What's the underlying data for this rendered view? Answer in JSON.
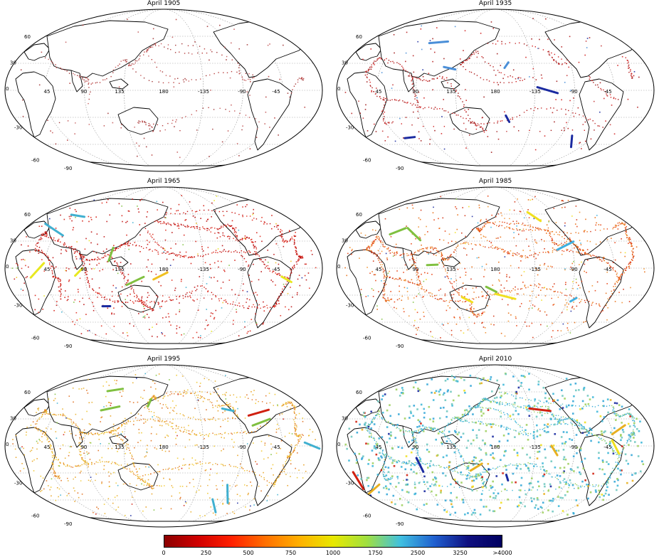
{
  "panels": [
    {
      "id": "p1905",
      "title": "April 1905",
      "density": 0.25,
      "palette": [
        "#b8403e",
        "#c76060",
        "#a33a3a"
      ],
      "extra": []
    },
    {
      "id": "p1935",
      "title": "April 1935",
      "density": 0.45,
      "palette": [
        "#b51d1d",
        "#c43a3a",
        "#d02020",
        "#a01818"
      ],
      "extra": [
        "#4a8fd8",
        "#1a2aa0"
      ]
    },
    {
      "id": "p1965",
      "title": "April 1965",
      "density": 0.8,
      "palette": [
        "#d41a10",
        "#c01010",
        "#e03020",
        "#b80c0c"
      ],
      "extra": [
        "#f0c020",
        "#e8e820",
        "#40b0d0",
        "#1a2aa0",
        "#80c040"
      ]
    },
    {
      "id": "p1985",
      "title": "April 1985",
      "density": 0.8,
      "palette": [
        "#e86a10",
        "#e84010",
        "#f09030",
        "#d03010"
      ],
      "extra": [
        "#f0e020",
        "#40b0e0",
        "#1a2aa0",
        "#80c040"
      ]
    },
    {
      "id": "p1995",
      "title": "April 1995",
      "density": 0.8,
      "palette": [
        "#e8b030",
        "#e8a020",
        "#f0c830",
        "#e07020"
      ],
      "extra": [
        "#d02010",
        "#1a2aa0",
        "#80c040",
        "#40b0d0"
      ]
    },
    {
      "id": "p2010",
      "title": "April 2010",
      "density": 1.0,
      "palette": [
        "#40b8d8",
        "#70c8c0",
        "#a0d060",
        "#38a8d8"
      ],
      "extra": [
        "#e8b020",
        "#d02010",
        "#1a2aa0",
        "#f0e020"
      ]
    }
  ],
  "grid_labels": {
    "lat": [
      "60",
      "30",
      "0",
      "-30",
      "-60",
      "-90"
    ],
    "lon": [
      "45",
      "90",
      "135",
      "180",
      "-135",
      "-90",
      "-45"
    ]
  },
  "colorbar": {
    "ticks": [
      "0",
      "250",
      "500",
      "750",
      "1000",
      "1750",
      "2500",
      "3250",
      ">4000"
    ],
    "colors": [
      "#8b0000",
      "#d00000",
      "#ff2000",
      "#ff7000",
      "#ffb000",
      "#e8e800",
      "#a0e040",
      "#40c0e0",
      "#2060d0",
      "#101080",
      "#000060"
    ]
  }
}
